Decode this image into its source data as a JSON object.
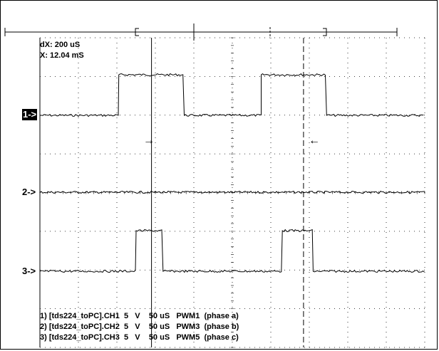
{
  "readouts": {
    "dx": "dX: 200 uS",
    "x": "X: 12.04 mS"
  },
  "channel_markers": [
    {
      "label": "1->",
      "active": true
    },
    {
      "label": "2->",
      "active": false
    },
    {
      "label": "3->",
      "active": false
    }
  ],
  "legend": [
    "1) [tds224_toPC].CH1  5   V    50 uS   PWM1  (phase a)",
    "2) [tds224_toPC].CH2  5   V    50 uS   PWM3  (phase b)",
    "3) [tds224_toPC].CH3  5   V    50 uS   PWM5  (phase c)"
  ],
  "cursor_arrows": [
    "→",
    "←"
  ],
  "colors": {
    "trace": "#000000",
    "grid": "#000000",
    "background": "#ffffff"
  },
  "chart_data": {
    "type": "line",
    "title": "",
    "xlabel": "",
    "ylabel": "",
    "xlim": [
      0,
      10
    ],
    "ylim": [
      -4,
      4
    ],
    "grid": true,
    "series": [
      {
        "name": "PWM1",
        "x": [
          0,
          2.05,
          2.05,
          3.75,
          3.75,
          5.75,
          5.75,
          7.45,
          7.45,
          10
        ],
        "values": [
          0,
          0,
          1,
          1,
          0,
          0,
          1,
          1,
          0,
          0
        ]
      },
      {
        "name": "PWM3",
        "x": [
          0,
          10
        ],
        "values": [
          0,
          0
        ]
      },
      {
        "name": "PWM5",
        "x": [
          0,
          2.5,
          2.5,
          3.2,
          3.2,
          6.3,
          6.3,
          7.1,
          7.1,
          10
        ],
        "values": [
          0,
          0,
          1,
          1,
          0,
          0,
          1,
          1,
          0,
          0
        ]
      }
    ],
    "cursors": {
      "solid_x": 2.9,
      "dashed_x": 6.85
    }
  }
}
